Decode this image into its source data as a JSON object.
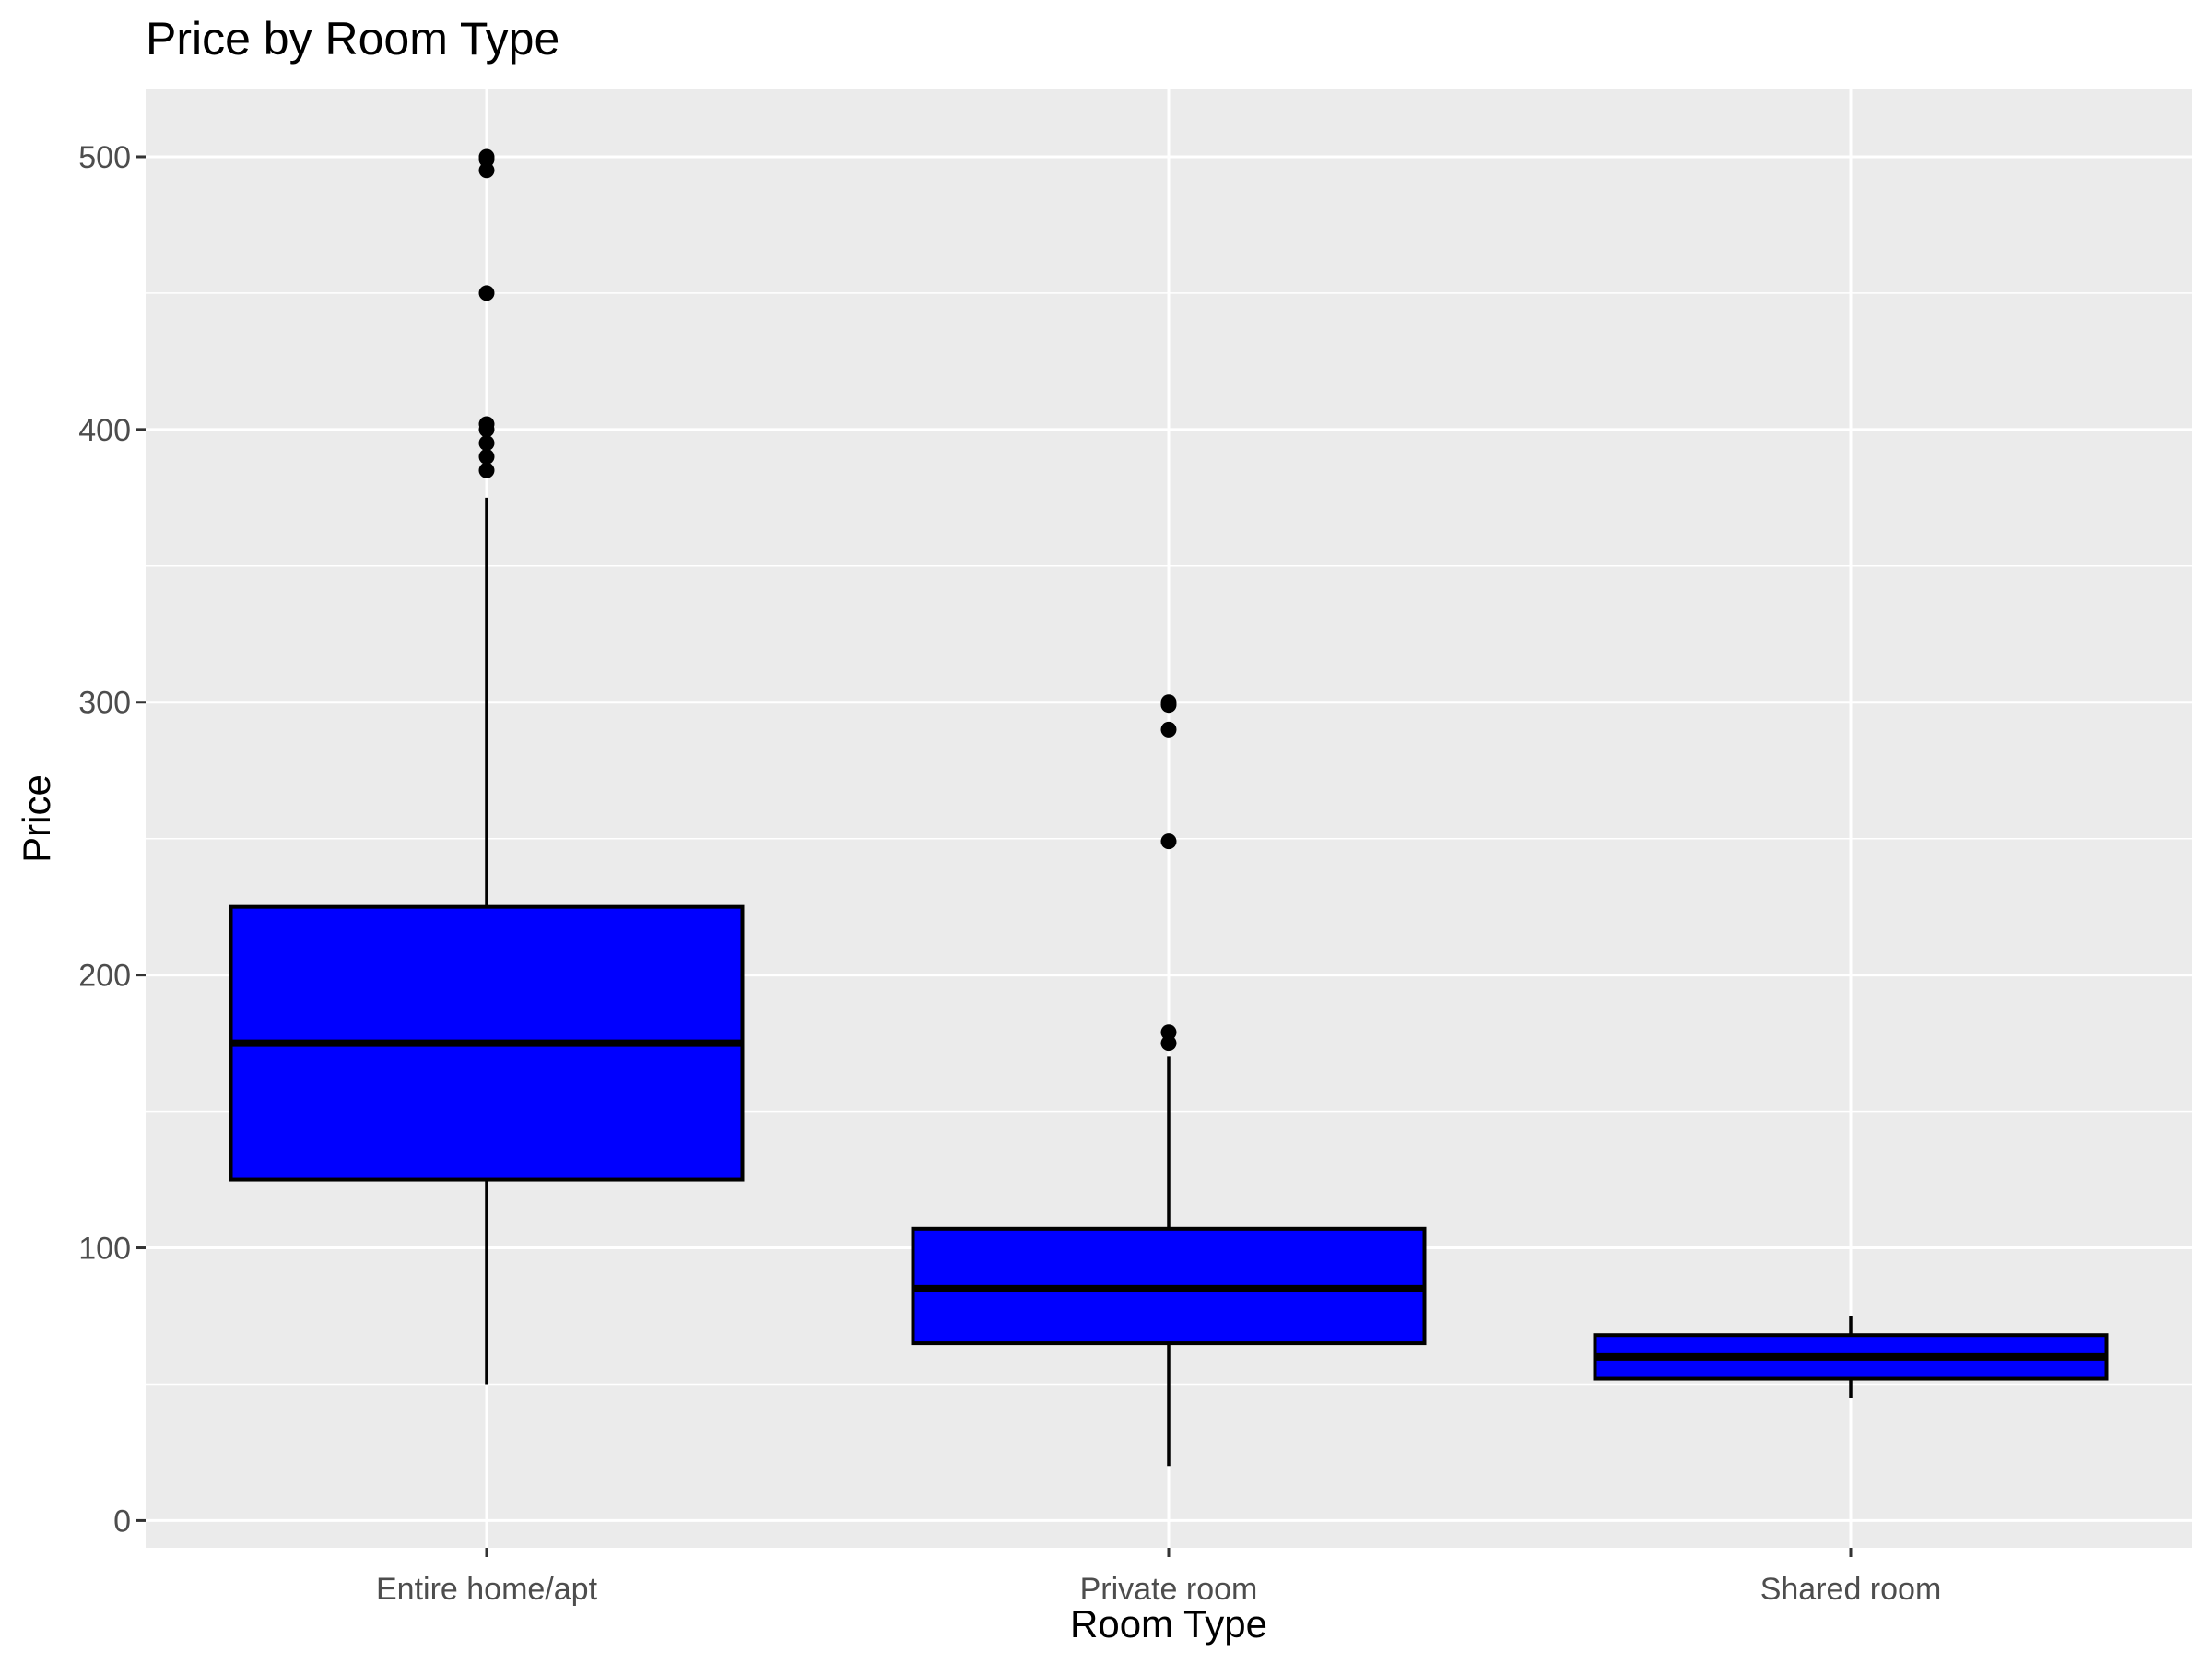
{
  "chart_data": {
    "type": "boxplot",
    "title": "Price by Room Type",
    "xlabel": "Room Type",
    "ylabel": "Price",
    "ylim": [
      -10,
      525
    ],
    "yticks": [
      0,
      100,
      200,
      300,
      400,
      500
    ],
    "grid": true,
    "categories": [
      "Entire home/apt",
      "Private room",
      "Shared room"
    ],
    "boxes": [
      {
        "category": "Entire home/apt",
        "whisker_low": 50,
        "q1": 125,
        "median": 175,
        "q3": 225,
        "whisker_high": 375,
        "outliers": [
          385,
          390,
          395,
          400,
          402,
          450,
          495,
          499,
          500
        ]
      },
      {
        "category": "Private room",
        "whisker_low": 20,
        "q1": 65,
        "median": 85,
        "q3": 107,
        "whisker_high": 170,
        "outliers": [
          175,
          179,
          249,
          290,
          299,
          300
        ]
      },
      {
        "category": "Shared room",
        "whisker_low": 45,
        "q1": 52,
        "median": 60,
        "q3": 68,
        "whisker_high": 75,
        "outliers": []
      }
    ],
    "colors": {
      "panel_background": "#ebebeb",
      "grid": "#ffffff",
      "box_fill": "#0000ff",
      "box_outline": "#000000",
      "outlier": "#000000",
      "tick_label": "#4d4d4d"
    }
  }
}
